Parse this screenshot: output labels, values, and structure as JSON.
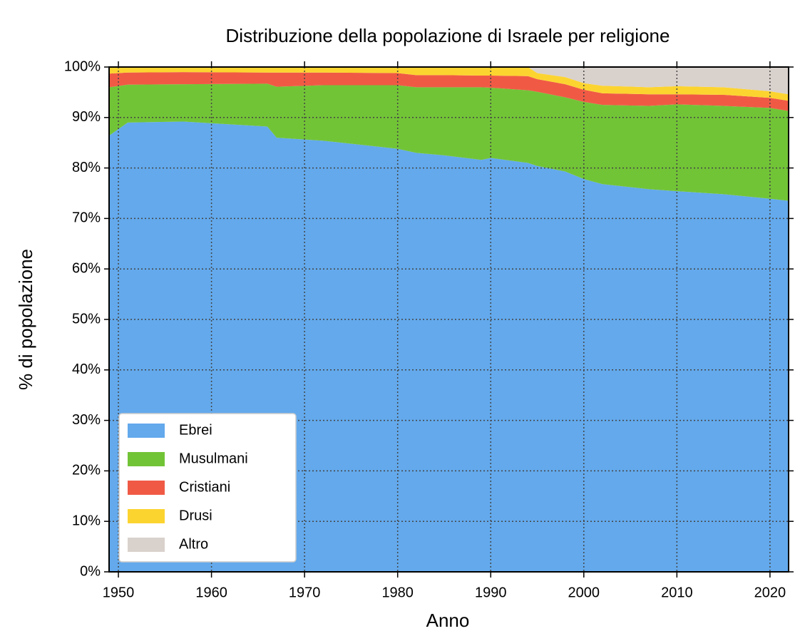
{
  "chart_data": {
    "type": "stacked-area",
    "title": "Distribuzione della popolazione di Israele per religione",
    "x_label": "Anno",
    "y_label": "% di popolazione",
    "x": [
      1949,
      1951,
      1957,
      1966,
      1967,
      1972,
      1980,
      1982,
      1985,
      1989,
      1990,
      1994,
      1995,
      1998,
      2000,
      2002,
      2007,
      2010,
      2015,
      2020,
      2022
    ],
    "series": [
      {
        "name": "Ebrei",
        "color": "#63a9ec",
        "values": [
          86.4,
          89.0,
          89.2,
          88.2,
          86.0,
          85.4,
          83.8,
          83.0,
          82.5,
          81.6,
          82.0,
          81.0,
          80.4,
          79.3,
          77.8,
          76.8,
          75.8,
          75.4,
          74.8,
          73.9,
          73.5
        ]
      },
      {
        "name": "Musulmani",
        "color": "#72c437",
        "values": [
          9.6,
          7.5,
          7.4,
          8.5,
          10.1,
          11.0,
          12.6,
          13.0,
          13.5,
          14.4,
          13.9,
          14.4,
          14.7,
          14.7,
          15.3,
          15.7,
          16.5,
          17.2,
          17.5,
          18.0,
          17.8
        ]
      },
      {
        "name": "Cristiani",
        "color": "#f05a45",
        "values": [
          2.7,
          2.4,
          2.4,
          2.2,
          2.8,
          2.5,
          2.4,
          2.4,
          2.4,
          2.3,
          2.4,
          2.8,
          2.5,
          2.6,
          2.4,
          2.3,
          2.3,
          2.0,
          2.2,
          2.0,
          2.0
        ]
      },
      {
        "name": "Drusi",
        "color": "#fcd430",
        "values": [
          1.3,
          1.1,
          1.0,
          1.1,
          1.1,
          1.1,
          1.2,
          1.6,
          1.6,
          1.7,
          1.7,
          1.8,
          1.2,
          1.4,
          1.3,
          1.5,
          1.4,
          1.6,
          1.5,
          1.3,
          1.3
        ]
      },
      {
        "name": "Altro",
        "color": "#d9d1cc",
        "values": [
          0,
          0,
          0,
          0,
          0,
          0,
          0,
          0,
          0,
          0,
          0,
          0,
          1.2,
          2.0,
          3.2,
          3.7,
          4.0,
          3.8,
          4.0,
          4.8,
          5.4
        ]
      }
    ],
    "xlim": [
      1949,
      2022
    ],
    "xticks": [
      1950,
      1960,
      1970,
      1980,
      1990,
      2000,
      2010,
      2020
    ],
    "ylim": [
      0,
      100
    ],
    "yticks": [
      {
        "value": 0,
        "label": "0%"
      },
      {
        "value": 10,
        "label": "10%"
      },
      {
        "value": 20,
        "label": "20%"
      },
      {
        "value": 30,
        "label": "30%"
      },
      {
        "value": 40,
        "label": "40%"
      },
      {
        "value": 50,
        "label": "50%"
      },
      {
        "value": 60,
        "label": "60%"
      },
      {
        "value": 70,
        "label": "70%"
      },
      {
        "value": 80,
        "label": "80%"
      },
      {
        "value": 90,
        "label": "90%"
      },
      {
        "value": 100,
        "label": "100%"
      }
    ],
    "grid": true,
    "legend": "lower left"
  }
}
